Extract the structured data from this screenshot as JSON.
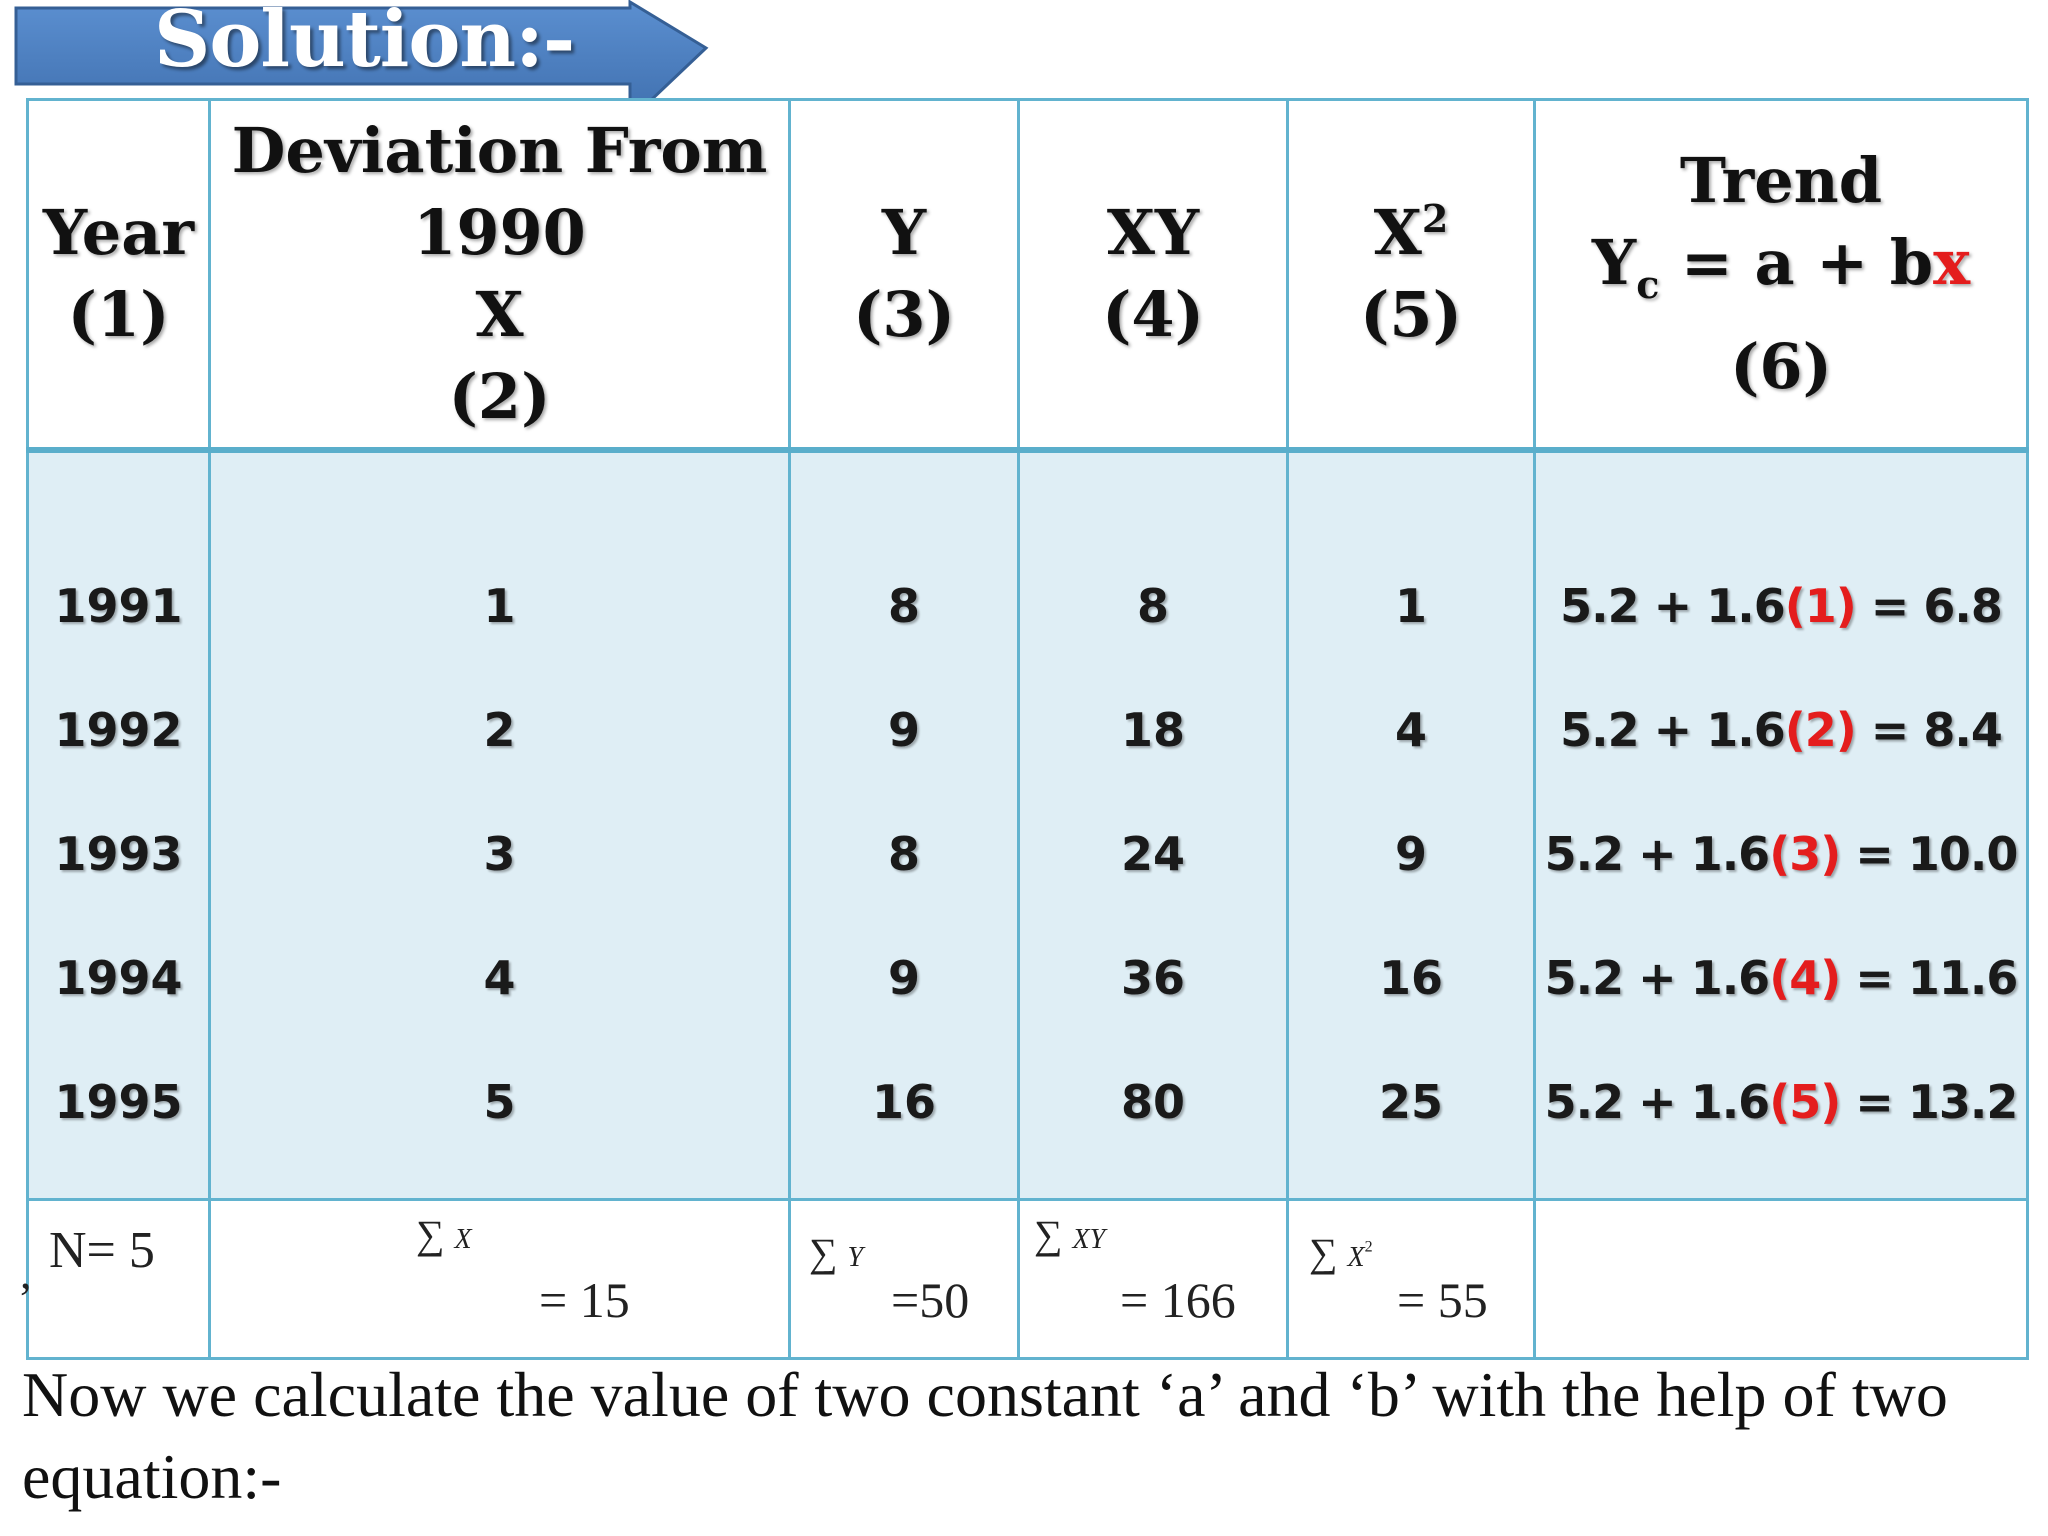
{
  "title": "Solution:-",
  "colors": {
    "banner_fill": "#4f81bd",
    "table_border": "#62b3cf",
    "data_background": "#dfeef5",
    "accent_red": "#e41d1d"
  },
  "table": {
    "headers": {
      "year": {
        "line1": "Year",
        "line2": "(1)"
      },
      "deviation": {
        "line1": "Deviation From",
        "line2": "1990",
        "line3": "X",
        "line4": "(2)"
      },
      "y": {
        "line1": "Y",
        "line2": "(3)"
      },
      "xy": {
        "line1": "XY",
        "line2": "(4)"
      },
      "x2": {
        "base": "X",
        "sup": "2",
        "line2": "(5)"
      },
      "trend": {
        "line1": "Trend",
        "y": "Y",
        "sub": "c",
        "eq": " = a + b",
        "x": "x",
        "line3": "(6)"
      }
    },
    "rows": [
      {
        "year": "1991",
        "x": "1",
        "y": "8",
        "xy": "8",
        "x2": "1",
        "trend_pre": "5.2 + 1.6",
        "trend_x": "(1)",
        "trend_post": " = 6.8"
      },
      {
        "year": "1992",
        "x": "2",
        "y": "9",
        "xy": "18",
        "x2": "4",
        "trend_pre": "5.2 + 1.6",
        "trend_x": "(2)",
        "trend_post": " = 8.4"
      },
      {
        "year": "1993",
        "x": "3",
        "y": "8",
        "xy": "24",
        "x2": "9",
        "trend_pre": "5.2 + 1.6",
        "trend_x": "(3)",
        "trend_post": " = 10.0"
      },
      {
        "year": "1994",
        "x": "4",
        "y": "9",
        "xy": "36",
        "x2": "16",
        "trend_pre": "5.2 + 1.6",
        "trend_x": "(4)",
        "trend_post": " = 11.6"
      },
      {
        "year": "1995",
        "x": "5",
        "y": "16",
        "xy": "80",
        "x2": "25",
        "trend_pre": "5.2 + 1.6",
        "trend_x": "(5)",
        "trend_post": " = 13.2"
      }
    ],
    "totals": {
      "n": "N= 5",
      "sum_symbol": "∑",
      "sum_x_var": "X",
      "sum_x": "= 15",
      "sum_y_var": "Y",
      "sum_y": "=50",
      "sum_xy_var": "XY",
      "sum_xy": "= 166",
      "sum_x2_var": "X",
      "sum_x2_sup": "2",
      "sum_x2": "= 55",
      "stray": ","
    }
  },
  "footer": {
    "text": "Now we calculate the value of two constant  ‘a’ and ‘b’ with the help of two equation:-"
  }
}
